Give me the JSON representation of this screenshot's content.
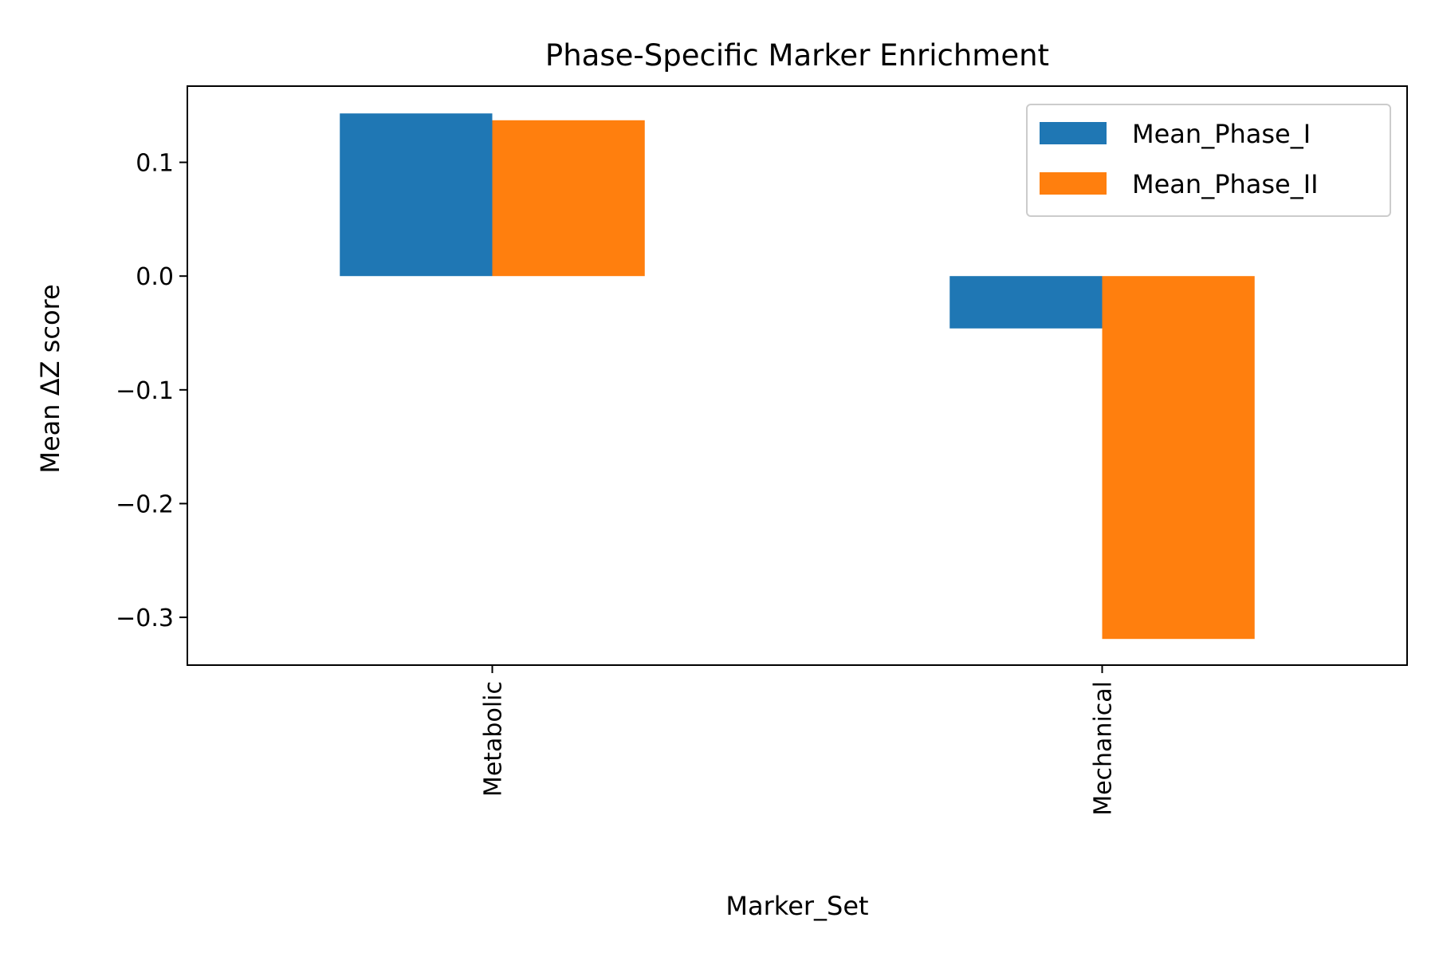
{
  "chart_data": {
    "type": "bar",
    "title": "Phase-Specific Marker Enrichment",
    "xlabel": "Marker_Set",
    "ylabel": "Mean ΔZ score",
    "categories": [
      "Metabolic",
      "Mechanical"
    ],
    "series": [
      {
        "name": "Mean_Phase_I",
        "color": "#1f77b4",
        "values": [
          0.143,
          -0.046
        ]
      },
      {
        "name": "Mean_Phase_II",
        "color": "#ff7f0e",
        "values": [
          0.137,
          -0.319
        ]
      }
    ],
    "ylim": [
      -0.342,
      0.167
    ],
    "yticks": [
      0.1,
      0.0,
      -0.1,
      -0.2,
      -0.3
    ],
    "ytick_labels": [
      "0.1",
      "0.0",
      "−0.1",
      "−0.2",
      "−0.3"
    ],
    "grid": false,
    "legend": {
      "placement": "top-right"
    }
  }
}
